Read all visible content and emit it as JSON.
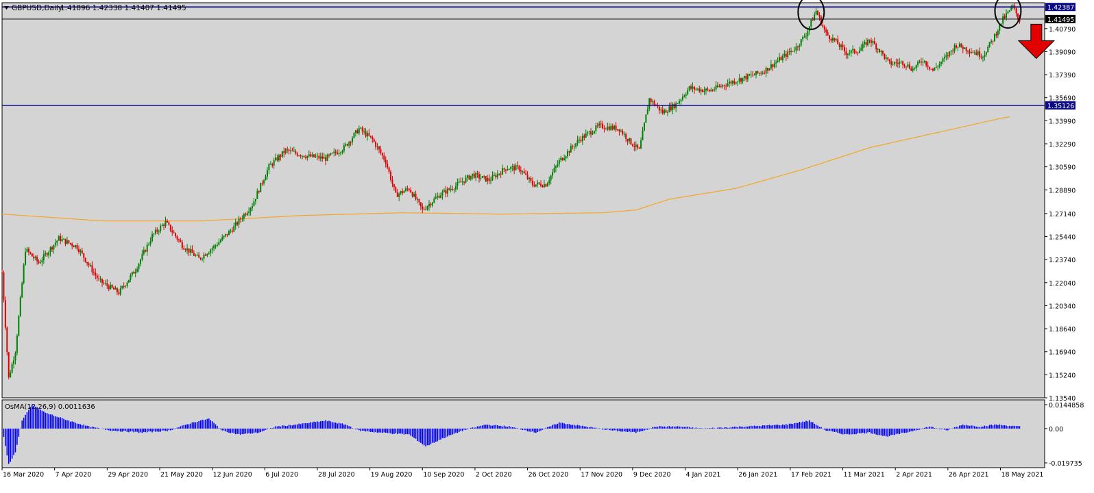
{
  "header": {
    "symbol": "GBPUSD,Daily",
    "ohlc": "1.41896 1.42338 1.41407 1.41495"
  },
  "indicator": {
    "label": "OsMA(12,26,9) 0.0011636"
  },
  "price_axis": {
    "ticks": [
      "1.40790",
      "1.39090",
      "1.37390",
      "1.35690",
      "1.33990",
      "1.32290",
      "1.30590",
      "1.28890",
      "1.27140",
      "1.25440",
      "1.23740",
      "1.22040",
      "1.20340",
      "1.18640",
      "1.16940",
      "1.15240",
      "1.13540"
    ],
    "markers": [
      {
        "label": "1.42387",
        "kind": "resistance"
      },
      {
        "label": "1.41495",
        "kind": "current"
      },
      {
        "label": "1.35126",
        "kind": "support"
      }
    ]
  },
  "osma_axis": {
    "ticks": [
      "0.0144858",
      "0.00",
      "-0.019735"
    ]
  },
  "time_axis": {
    "labels": [
      "16 Mar 2020",
      "7 Apr 2020",
      "29 Apr 2020",
      "21 May 2020",
      "12 Jun 2020",
      "6 Jul 2020",
      "28 Jul 2020",
      "19 Aug 2020",
      "10 Sep 2020",
      "2 Oct 2020",
      "26 Oct 2020",
      "17 Nov 2020",
      "9 Dec 2020",
      "4 Jan 2021",
      "26 Jan 2021",
      "17 Feb 2021",
      "11 Mar 2021",
      "2 Apr 2021",
      "26 Apr 2021",
      "18 May 2021"
    ]
  },
  "colors": {
    "background": "#d4d4d4",
    "bull": "#008000",
    "bear": "#e00000",
    "ma": "#f5a623",
    "hline": "#0b0b8a",
    "osma": "#0000ff",
    "arrow": "#e00000"
  },
  "chart_data": {
    "type": "candlestick",
    "symbol": "GBPUSD",
    "timeframe": "Daily",
    "price_range": [
      1.1354,
      1.427
    ],
    "x_dates": [
      "16 Mar 2020",
      "7 Apr 2020",
      "29 Apr 2020",
      "21 May 2020",
      "12 Jun 2020",
      "6 Jul 2020",
      "28 Jul 2020",
      "19 Aug 2020",
      "10 Sep 2020",
      "2 Oct 2020",
      "26 Oct 2020",
      "17 Nov 2020",
      "9 Dec 2020",
      "4 Jan 2021",
      "26 Jan 2021",
      "17 Feb 2021",
      "11 Mar 2021",
      "2 Apr 2021",
      "26 Apr 2021",
      "18 May 2021"
    ],
    "close_path": [
      [
        0,
        1.228
      ],
      [
        4,
        1.15
      ],
      [
        8,
        1.17
      ],
      [
        14,
        1.245
      ],
      [
        22,
        1.235
      ],
      [
        34,
        1.253
      ],
      [
        45,
        1.247
      ],
      [
        58,
        1.222
      ],
      [
        70,
        1.213
      ],
      [
        80,
        1.23
      ],
      [
        90,
        1.255
      ],
      [
        98,
        1.265
      ],
      [
        108,
        1.248
      ],
      [
        118,
        1.238
      ],
      [
        128,
        1.248
      ],
      [
        138,
        1.26
      ],
      [
        150,
        1.278
      ],
      [
        160,
        1.306
      ],
      [
        170,
        1.318
      ],
      [
        182,
        1.314
      ],
      [
        194,
        1.312
      ],
      [
        205,
        1.32
      ],
      [
        214,
        1.334
      ],
      [
        222,
        1.326
      ],
      [
        230,
        1.31
      ],
      [
        236,
        1.285
      ],
      [
        244,
        1.29
      ],
      [
        252,
        1.274
      ],
      [
        262,
        1.285
      ],
      [
        272,
        1.292
      ],
      [
        282,
        1.3
      ],
      [
        292,
        1.296
      ],
      [
        302,
        1.305
      ],
      [
        310,
        1.305
      ],
      [
        318,
        1.293
      ],
      [
        326,
        1.293
      ],
      [
        334,
        1.31
      ],
      [
        346,
        1.326
      ],
      [
        358,
        1.336
      ],
      [
        370,
        1.334
      ],
      [
        376,
        1.325
      ],
      [
        382,
        1.318
      ],
      [
        388,
        1.356
      ],
      [
        396,
        1.346
      ],
      [
        404,
        1.352
      ],
      [
        412,
        1.364
      ],
      [
        424,
        1.362
      ],
      [
        436,
        1.368
      ],
      [
        446,
        1.372
      ],
      [
        456,
        1.376
      ],
      [
        466,
        1.385
      ],
      [
        476,
        1.394
      ],
      [
        482,
        1.404
      ],
      [
        488,
        1.421
      ],
      [
        494,
        1.404
      ],
      [
        500,
        1.398
      ],
      [
        506,
        1.39
      ],
      [
        514,
        1.392
      ],
      [
        520,
        1.4
      ],
      [
        526,
        1.392
      ],
      [
        532,
        1.382
      ],
      [
        540,
        1.383
      ],
      [
        546,
        1.378
      ],
      [
        552,
        1.385
      ],
      [
        558,
        1.377
      ],
      [
        566,
        1.387
      ],
      [
        572,
        1.396
      ],
      [
        580,
        1.392
      ],
      [
        588,
        1.388
      ],
      [
        594,
        1.4
      ],
      [
        600,
        1.415
      ],
      [
        606,
        1.424
      ],
      [
        610,
        1.414
      ]
    ],
    "moving_average": [
      [
        0,
        1.271
      ],
      [
        60,
        1.266
      ],
      [
        120,
        1.266
      ],
      [
        180,
        1.27
      ],
      [
        240,
        1.272
      ],
      [
        300,
        1.271
      ],
      [
        360,
        1.272
      ],
      [
        380,
        1.274
      ],
      [
        400,
        1.282
      ],
      [
        440,
        1.29
      ],
      [
        480,
        1.304
      ],
      [
        520,
        1.32
      ],
      [
        560,
        1.331
      ],
      [
        600,
        1.342
      ],
      [
        605,
        1.343
      ]
    ],
    "horizontal_lines": [
      {
        "value": 1.42387,
        "label": "1.42387"
      },
      {
        "value": 1.41495,
        "label": "1.41495"
      },
      {
        "value": 1.35126,
        "label": "1.35126"
      }
    ],
    "annotations": [
      {
        "type": "circle",
        "date_index": 485,
        "price": 1.42
      },
      {
        "type": "circle",
        "date_index": 603,
        "price": 1.421
      },
      {
        "type": "arrow-down",
        "date_index": 620,
        "price": 1.4
      }
    ],
    "osma": {
      "label": "OsMA(12,26,9)",
      "last_value": 0.0011636,
      "range": [
        -0.019735,
        0.0144858
      ],
      "path": [
        [
          0,
          0.0
        ],
        [
          4,
          -0.018
        ],
        [
          8,
          -0.012
        ],
        [
          12,
          0.004
        ],
        [
          18,
          0.012
        ],
        [
          26,
          0.008
        ],
        [
          40,
          0.004
        ],
        [
          52,
          0.001
        ],
        [
          66,
          -0.001
        ],
        [
          84,
          -0.002
        ],
        [
          100,
          -0.001
        ],
        [
          114,
          0.003
        ],
        [
          124,
          0.005
        ],
        [
          132,
          -0.001
        ],
        [
          142,
          -0.003
        ],
        [
          154,
          -0.002
        ],
        [
          164,
          0.001
        ],
        [
          176,
          0.002
        ],
        [
          194,
          0.004
        ],
        [
          206,
          0.002
        ],
        [
          214,
          -0.001
        ],
        [
          226,
          -0.002
        ],
        [
          244,
          -0.003
        ],
        [
          254,
          -0.009
        ],
        [
          264,
          -0.005
        ],
        [
          276,
          -0.001
        ],
        [
          290,
          0.002
        ],
        [
          304,
          0.001
        ],
        [
          320,
          -0.002
        ],
        [
          334,
          0.003
        ],
        [
          350,
          0.001
        ],
        [
          366,
          -0.001
        ],
        [
          380,
          -0.002
        ],
        [
          392,
          0.001
        ],
        [
          406,
          0.001
        ],
        [
          420,
          0.0
        ],
        [
          444,
          0.001
        ],
        [
          470,
          0.002
        ],
        [
          484,
          0.004
        ],
        [
          494,
          -0.001
        ],
        [
          506,
          -0.003
        ],
        [
          520,
          -0.002
        ],
        [
          530,
          -0.004
        ],
        [
          542,
          -0.002
        ],
        [
          556,
          0.001
        ],
        [
          566,
          -0.001
        ],
        [
          576,
          0.002
        ],
        [
          586,
          0.001
        ],
        [
          596,
          0.002
        ],
        [
          610,
          0.001
        ]
      ]
    }
  }
}
